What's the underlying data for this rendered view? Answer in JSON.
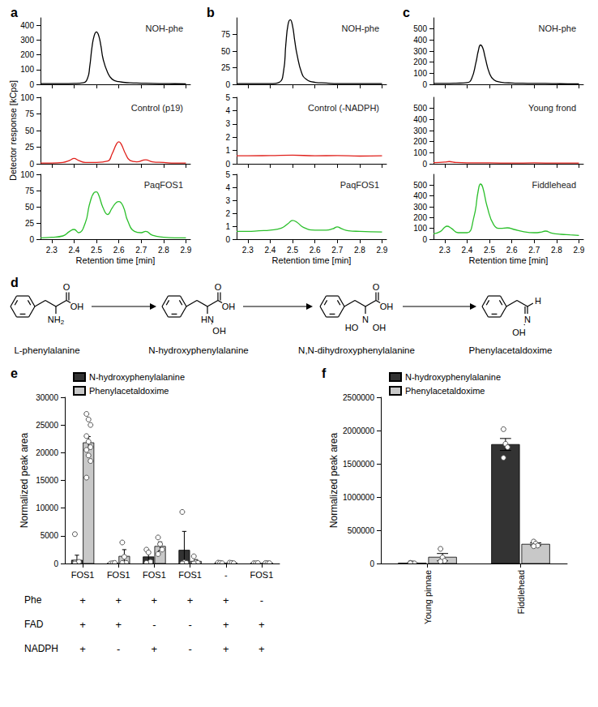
{
  "panel_labels": [
    "a",
    "b",
    "c",
    "d",
    "e",
    "f"
  ],
  "diagram": {
    "compounds": [
      {
        "name": "L-phenylalanine",
        "atoms": [
          "O",
          "OH",
          "NH2"
        ]
      },
      {
        "name": "N-hydroxyphenylalanine",
        "atoms": [
          "O",
          "OH",
          "HN",
          "OH"
        ]
      },
      {
        "name": "N,N-dihydroxyphenylalanine",
        "atoms": [
          "O",
          "OH",
          "N",
          "HO",
          "OH"
        ]
      },
      {
        "name": "Phenylacetaldoxime",
        "atoms": [
          "H",
          "N",
          "OH"
        ]
      }
    ]
  },
  "chart_data": [
    {
      "type": "line",
      "title": "NOH-phe",
      "color": "#000000",
      "x": [
        2.25,
        2.3,
        2.35,
        2.4,
        2.44,
        2.46,
        2.47,
        2.48,
        2.49,
        2.5,
        2.51,
        2.52,
        2.53,
        2.55,
        2.57,
        2.6,
        2.65,
        2.7,
        2.75,
        2.8,
        2.85,
        2.9
      ],
      "values": [
        5,
        5,
        5,
        6,
        10,
        40,
        120,
        250,
        330,
        355,
        330,
        260,
        170,
        80,
        35,
        18,
        10,
        8,
        6,
        5,
        4,
        3
      ],
      "xlim": [
        2.25,
        2.92
      ],
      "xticks": [
        2.3,
        2.4,
        2.5,
        2.6,
        2.7,
        2.8,
        2.9
      ],
      "ylim": [
        0,
        450
      ],
      "yticks": [
        0,
        100,
        200,
        300,
        400
      ],
      "tick_labels": "y",
      "grid": false
    },
    {
      "type": "line",
      "title": "Control (p19)",
      "color": "#e0201b",
      "ylabel": "Detector response [kCps]",
      "x": [
        2.25,
        2.3,
        2.35,
        2.38,
        2.4,
        2.42,
        2.45,
        2.5,
        2.55,
        2.57,
        2.59,
        2.6,
        2.61,
        2.63,
        2.65,
        2.68,
        2.72,
        2.75,
        2.8,
        2.85,
        2.9
      ],
      "values": [
        1,
        1,
        2,
        5,
        8,
        5,
        2,
        2,
        4,
        15,
        30,
        33,
        30,
        15,
        5,
        3,
        6,
        3,
        2,
        1,
        1
      ],
      "xlim": [
        2.25,
        2.92
      ],
      "xticks": [
        2.3,
        2.4,
        2.5,
        2.6,
        2.7,
        2.8,
        2.9
      ],
      "ylim": [
        0,
        100
      ],
      "yticks": [
        0,
        25,
        50,
        75,
        100
      ],
      "tick_labels": "y",
      "grid": false
    },
    {
      "type": "line",
      "title": "PaqFOS1",
      "color": "#2bbf2b",
      "xlabel": "Retention time [min]",
      "x": [
        2.25,
        2.3,
        2.35,
        2.38,
        2.4,
        2.42,
        2.45,
        2.47,
        2.49,
        2.5,
        2.51,
        2.53,
        2.55,
        2.57,
        2.59,
        2.6,
        2.62,
        2.64,
        2.67,
        2.7,
        2.72,
        2.75,
        2.8,
        2.85,
        2.9
      ],
      "values": [
        2,
        3,
        5,
        12,
        15,
        10,
        25,
        55,
        72,
        73,
        68,
        48,
        38,
        48,
        57,
        58,
        50,
        28,
        12,
        10,
        12,
        6,
        3,
        2,
        2
      ],
      "xlim": [
        2.25,
        2.92
      ],
      "xticks": [
        2.3,
        2.4,
        2.5,
        2.6,
        2.7,
        2.8,
        2.9
      ],
      "ylim": [
        0,
        100
      ],
      "yticks": [
        0,
        25,
        50,
        75,
        100
      ],
      "grid": false
    },
    {
      "type": "line",
      "title": "NOH-phe",
      "color": "#000000",
      "x": [
        2.25,
        2.3,
        2.35,
        2.4,
        2.44,
        2.46,
        2.47,
        2.48,
        2.49,
        2.5,
        2.51,
        2.52,
        2.54,
        2.56,
        2.6,
        2.65,
        2.7,
        2.75,
        2.8,
        2.85,
        2.9
      ],
      "values": [
        1,
        1,
        1,
        1,
        3,
        20,
        60,
        90,
        97,
        88,
        65,
        45,
        18,
        8,
        3,
        2,
        1,
        1,
        1,
        1,
        1
      ],
      "xlim": [
        2.25,
        2.92
      ],
      "xticks": [
        2.3,
        2.4,
        2.5,
        2.6,
        2.7,
        2.8,
        2.9
      ],
      "ylim": [
        0,
        100
      ],
      "yticks": [
        0,
        25,
        50,
        75
      ],
      "tick_labels": "y",
      "grid": false
    },
    {
      "type": "line",
      "title": "Control (-NADPH)",
      "color": "#e0201b",
      "x": [
        2.25,
        2.3,
        2.4,
        2.5,
        2.6,
        2.7,
        2.8,
        2.9
      ],
      "values": [
        0.6,
        0.6,
        0.62,
        0.65,
        0.6,
        0.62,
        0.58,
        0.6
      ],
      "xlim": [
        2.25,
        2.92
      ],
      "xticks": [
        2.3,
        2.4,
        2.5,
        2.6,
        2.7,
        2.8,
        2.9
      ],
      "ylim": [
        0,
        5
      ],
      "yticks": [
        0,
        1,
        2,
        3,
        4,
        5
      ],
      "tick_labels": "y",
      "grid": false
    },
    {
      "type": "line",
      "title": "PaqFOS1",
      "color": "#2bbf2b",
      "xlabel": "Retention time [min]",
      "x": [
        2.25,
        2.3,
        2.35,
        2.4,
        2.45,
        2.48,
        2.5,
        2.52,
        2.55,
        2.6,
        2.65,
        2.68,
        2.7,
        2.72,
        2.75,
        2.8,
        2.9
      ],
      "values": [
        0.6,
        0.6,
        0.65,
        0.7,
        0.85,
        1.2,
        1.45,
        1.3,
        0.9,
        0.7,
        0.7,
        0.8,
        0.95,
        0.8,
        0.65,
        0.6,
        0.55
      ],
      "xlim": [
        2.25,
        2.92
      ],
      "xticks": [
        2.3,
        2.4,
        2.5,
        2.6,
        2.7,
        2.8,
        2.9
      ],
      "ylim": [
        0,
        5
      ],
      "yticks": [
        0,
        1,
        2,
        3,
        4,
        5
      ],
      "grid": false
    },
    {
      "type": "line",
      "title": "NOH-phe",
      "color": "#000000",
      "x": [
        2.25,
        2.3,
        2.35,
        2.4,
        2.42,
        2.44,
        2.45,
        2.46,
        2.47,
        2.48,
        2.5,
        2.52,
        2.55,
        2.6,
        2.65,
        2.7,
        2.75,
        2.8,
        2.85,
        2.9
      ],
      "values": [
        8,
        8,
        10,
        15,
        50,
        200,
        300,
        355,
        330,
        250,
        100,
        40,
        20,
        12,
        10,
        8,
        8,
        6,
        5,
        5
      ],
      "xlim": [
        2.25,
        2.92
      ],
      "xticks": [
        2.3,
        2.4,
        2.5,
        2.6,
        2.7,
        2.8,
        2.9
      ],
      "ylim": [
        0,
        600
      ],
      "yticks": [
        0,
        100,
        200,
        300,
        400,
        500
      ],
      "tick_labels": "y",
      "grid": false
    },
    {
      "type": "line",
      "title": "Young frond",
      "color": "#e0201b",
      "x": [
        2.25,
        2.3,
        2.32,
        2.35,
        2.4,
        2.5,
        2.6,
        2.7,
        2.8,
        2.9
      ],
      "values": [
        10,
        15,
        20,
        12,
        8,
        8,
        6,
        8,
        6,
        6
      ],
      "xlim": [
        2.25,
        2.92
      ],
      "xticks": [
        2.3,
        2.4,
        2.5,
        2.6,
        2.7,
        2.8,
        2.9
      ],
      "ylim": [
        0,
        600
      ],
      "yticks": [
        0,
        100,
        200,
        300,
        400,
        500
      ],
      "tick_labels": "y",
      "grid": false
    },
    {
      "type": "line",
      "title": "Fiddlehead",
      "color": "#2bbf2b",
      "xlabel": "Retention time [min]",
      "x": [
        2.25,
        2.28,
        2.3,
        2.31,
        2.33,
        2.36,
        2.4,
        2.43,
        2.45,
        2.46,
        2.47,
        2.49,
        2.52,
        2.55,
        2.58,
        2.61,
        2.65,
        2.7,
        2.73,
        2.75,
        2.78,
        2.82,
        2.86,
        2.9
      ],
      "values": [
        50,
        70,
        110,
        120,
        100,
        60,
        60,
        200,
        450,
        510,
        480,
        300,
        130,
        100,
        105,
        90,
        70,
        60,
        65,
        75,
        55,
        45,
        40,
        35
      ],
      "xlim": [
        2.25,
        2.92
      ],
      "xticks": [
        2.3,
        2.4,
        2.5,
        2.6,
        2.7,
        2.8,
        2.9
      ],
      "ylim": [
        0,
        600
      ],
      "yticks": [
        0,
        100,
        200,
        300,
        400,
        500
      ],
      "grid": false
    },
    {
      "type": "bar",
      "ylabel": "Normalized peak area",
      "legend": "upper left",
      "grid": false,
      "categories": [
        "FOS1",
        "FOS1",
        "FOS1",
        "FOS1",
        "-",
        "FOS1"
      ],
      "ylim": [
        0,
        30000
      ],
      "yticks": [
        0,
        5000,
        10000,
        15000,
        20000,
        25000,
        30000
      ],
      "series": [
        {
          "name": "N-hydroxyphenylalanine",
          "color": "#333333",
          "values": [
            600,
            50,
            1200,
            2400,
            100,
            50
          ],
          "errors": [
            900,
            30,
            700,
            3400,
            30,
            20
          ],
          "points": [
            [
              5300,
              0,
              0,
              0,
              0,
              100,
              200,
              0,
              300,
              0
            ],
            [
              0,
              50,
              100
            ],
            [
              2500,
              2000,
              300,
              100
            ],
            [
              9300,
              200,
              100,
              0
            ],
            [
              150,
              100,
              50
            ],
            [
              50,
              30,
              80
            ]
          ]
        },
        {
          "name": "Phenylacetaldoxime",
          "color": "#c8c8c8",
          "values": [
            21800,
            1300,
            3100,
            400,
            100,
            60
          ],
          "errors": [
            1100,
            1200,
            800,
            300,
            30,
            20
          ],
          "points": [
            [
              27000,
              26000,
              25000,
              23000,
              22000,
              21000,
              20500,
              19500,
              18500,
              15500
            ],
            [
              3800,
              1200,
              100,
              100
            ],
            [
              4700,
              3500,
              2500,
              1700
            ],
            [
              1300,
              200,
              100,
              0
            ],
            [
              150,
              100,
              50
            ],
            [
              80,
              50,
              60
            ]
          ]
        }
      ],
      "conditions": [
        {
          "label": "Phe",
          "values": [
            "+",
            "+",
            "+",
            "+",
            "+",
            "-"
          ]
        },
        {
          "label": "FAD",
          "values": [
            "+",
            "+",
            "-",
            "-",
            "+",
            "+"
          ]
        },
        {
          "label": "NADPH",
          "values": [
            "+",
            "-",
            "+",
            "-",
            "+",
            "+"
          ]
        }
      ]
    },
    {
      "type": "bar",
      "ylabel": "Normalized peak area",
      "legend": "upper left",
      "grid": false,
      "categories": [
        "Young pinnae",
        "Fiddlehead"
      ],
      "ylim": [
        0,
        2500000
      ],
      "yticks": [
        0,
        500000,
        1000000,
        1500000,
        2000000,
        2500000
      ],
      "series": [
        {
          "name": "N-hydroxyphenylalanine",
          "color": "#333333",
          "values": [
            5000,
            1790000
          ],
          "errors": [
            3000,
            90000
          ],
          "points": [
            [
              10000,
              3000,
              2000,
              5000
            ],
            [
              2020000,
              1800000,
              1750000,
              1590000
            ]
          ]
        },
        {
          "name": "Phenylacetaldoxime",
          "color": "#c8c8c8",
          "values": [
            95000,
            290000
          ],
          "errors": [
            55000,
            20000
          ],
          "points": [
            [
              220000,
              90000,
              40000,
              30000
            ],
            [
              330000,
              300000,
              270000,
              260000
            ]
          ]
        }
      ]
    }
  ]
}
